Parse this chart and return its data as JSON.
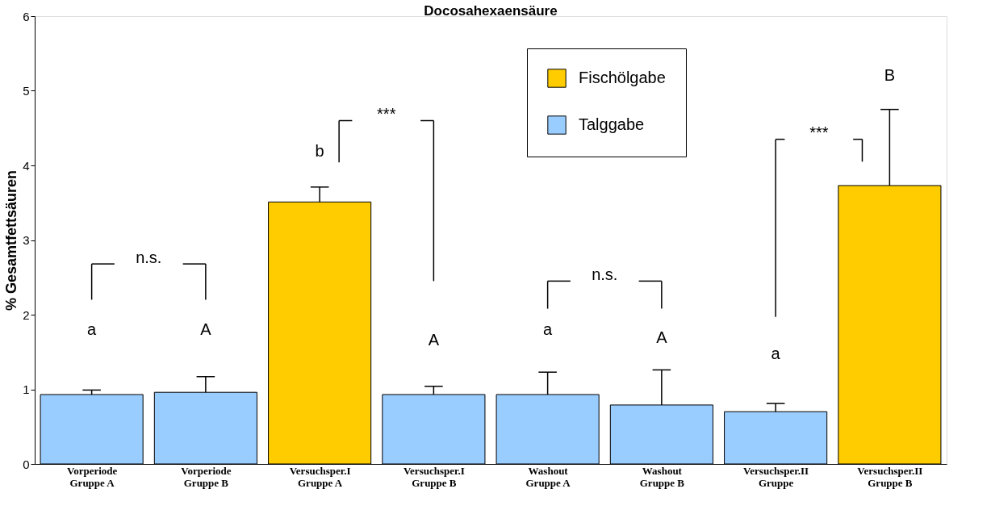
{
  "chart_data": {
    "type": "bar",
    "title": "Docosahexaensäure",
    "ylabel": "% Gesamtfettsäuren",
    "categories": [
      "Vorperiode\nGruppe A",
      "Vorperiode\nGruppe B",
      "Versuchsper.I\nGruppe A",
      "Versuchsper.I\nGruppe B",
      "Washout\nGruppe A",
      "Washout\nGruppe B",
      "Versuchsper.II\nGruppe",
      "Versuchsper.II\nGruppe B"
    ],
    "series": [
      {
        "name": "Fischölgabe",
        "color": "#ffcc00",
        "values": [
          null,
          null,
          3.51,
          null,
          null,
          null,
          null,
          3.73
        ],
        "errors": [
          null,
          null,
          [
            3.51,
            3.71
          ],
          null,
          null,
          null,
          null,
          [
            3.73,
            4.75
          ]
        ]
      },
      {
        "name": "Talggabe",
        "color": "#99ccff",
        "values": [
          0.93,
          0.96,
          null,
          0.93,
          0.93,
          0.79,
          0.7,
          null
        ],
        "errors": [
          [
            0.93,
            0.99
          ],
          [
            0.96,
            1.17
          ],
          null,
          [
            0.93,
            1.04
          ],
          [
            0.93,
            1.23
          ],
          [
            0.79,
            1.26
          ],
          [
            0.7,
            0.81
          ],
          null
        ]
      }
    ],
    "ylim": [
      0,
      6
    ],
    "yticks": [
      0,
      1,
      2,
      3,
      4,
      5,
      6
    ],
    "grid": false,
    "legend": "top right",
    "annotations": [
      "a",
      "A",
      "b",
      "A",
      "a",
      "A",
      "a",
      "B",
      "n.s.",
      "***",
      "n.s.",
      "***"
    ]
  }
}
